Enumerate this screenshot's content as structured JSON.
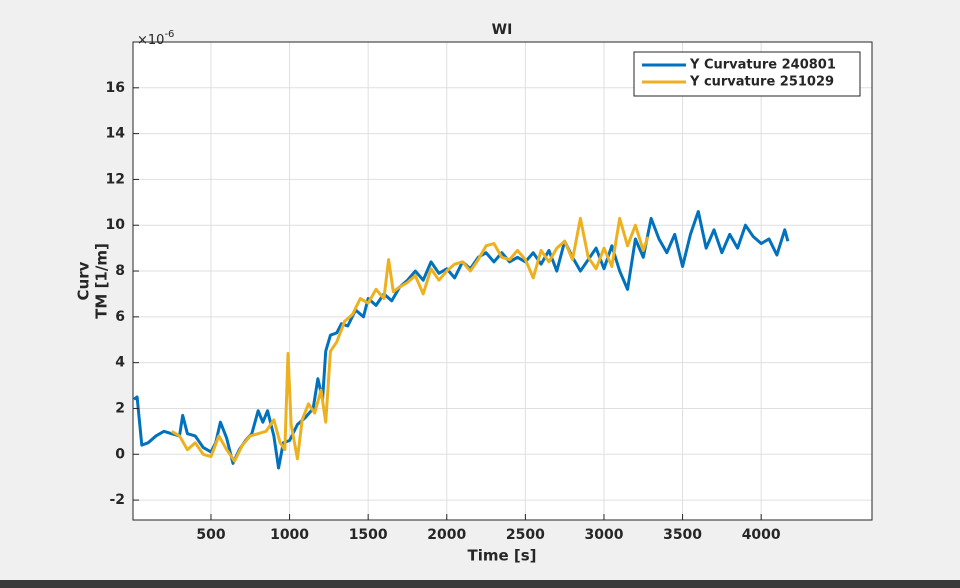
{
  "chart_data": {
    "type": "line",
    "title": "WI",
    "xlabel": "Time [s]",
    "ylabel": [
      "Curv",
      "TM [1/m]"
    ],
    "y_exponent": {
      "base": "×10",
      "power": "-6"
    },
    "xlim": [
      4,
      4705
    ],
    "ylim": [
      -2.87,
      18
    ],
    "xticks": [
      500,
      1000,
      1500,
      2000,
      2500,
      3000,
      3500,
      4000
    ],
    "yticks": [
      -2,
      0,
      2,
      4,
      6,
      8,
      10,
      12,
      14,
      16
    ],
    "grid": true,
    "legend": "northeast",
    "series": [
      {
        "name": "Y Curvature 240801",
        "color": "#0072bd",
        "x": [
          10,
          30,
          60,
          100,
          150,
          200,
          250,
          300,
          320,
          350,
          400,
          450,
          500,
          530,
          560,
          600,
          640,
          680,
          720,
          760,
          800,
          830,
          860,
          900,
          930,
          960,
          1000,
          1050,
          1100,
          1150,
          1180,
          1210,
          1230,
          1260,
          1300,
          1330,
          1370,
          1420,
          1470,
          1500,
          1550,
          1600,
          1650,
          1700,
          1750,
          1800,
          1850,
          1900,
          1950,
          2000,
          2050,
          2100,
          2150,
          2200,
          2250,
          2300,
          2350,
          2400,
          2450,
          2500,
          2550,
          2600,
          2650,
          2700,
          2750,
          2800,
          2850,
          2900,
          2950,
          3000,
          3050,
          3100,
          3150,
          3200,
          3250,
          3300,
          3350,
          3400,
          3450,
          3500,
          3550,
          3600,
          3650,
          3700,
          3750,
          3800,
          3850,
          3900,
          3950,
          4000,
          4050,
          4100,
          4150,
          4170
        ],
        "values": [
          2.4,
          2.5,
          0.4,
          0.5,
          0.8,
          1.0,
          0.9,
          0.8,
          1.7,
          0.9,
          0.8,
          0.3,
          0.1,
          0.5,
          1.4,
          0.7,
          -0.4,
          0.2,
          0.6,
          0.9,
          1.9,
          1.4,
          1.9,
          0.8,
          -0.6,
          0.5,
          0.6,
          1.3,
          1.6,
          2.0,
          3.3,
          2.4,
          4.5,
          5.2,
          5.3,
          5.7,
          5.6,
          6.3,
          6.0,
          6.8,
          6.5,
          7.0,
          6.7,
          7.3,
          7.6,
          8.0,
          7.6,
          8.4,
          7.9,
          8.1,
          7.7,
          8.4,
          8.1,
          8.6,
          8.8,
          8.4,
          8.8,
          8.4,
          8.6,
          8.4,
          8.8,
          8.3,
          8.9,
          8.0,
          9.3,
          8.6,
          8.0,
          8.5,
          9.0,
          8.1,
          9.1,
          8.0,
          7.2,
          9.4,
          8.6,
          10.3,
          9.4,
          8.8,
          9.6,
          8.2,
          9.6,
          10.6,
          9.0,
          9.8,
          8.8,
          9.6,
          9.0,
          10.0,
          9.5,
          9.2,
          9.4,
          8.7,
          9.8,
          9.3
        ]
      },
      {
        "name": "Y curvature 251029",
        "color": "#edb120",
        "x": [
          250,
          300,
          350,
          400,
          450,
          500,
          550,
          600,
          650,
          700,
          750,
          800,
          850,
          900,
          940,
          970,
          990,
          1010,
          1050,
          1080,
          1120,
          1160,
          1200,
          1230,
          1260,
          1300,
          1350,
          1400,
          1450,
          1500,
          1550,
          1600,
          1630,
          1660,
          1700,
          1750,
          1800,
          1850,
          1900,
          1950,
          2000,
          2050,
          2100,
          2150,
          2200,
          2250,
          2300,
          2350,
          2400,
          2450,
          2500,
          2550,
          2600,
          2650,
          2700,
          2750,
          2800,
          2850,
          2900,
          2950,
          3000,
          3050,
          3100,
          3150,
          3200,
          3250,
          3280
        ],
        "values": [
          1.0,
          0.8,
          0.2,
          0.5,
          0.0,
          -0.1,
          0.8,
          0.2,
          -0.3,
          0.4,
          0.8,
          0.9,
          1.0,
          1.5,
          0.5,
          0.2,
          4.4,
          1.3,
          -0.2,
          1.5,
          2.2,
          1.8,
          2.8,
          1.4,
          4.5,
          4.9,
          5.8,
          6.1,
          6.8,
          6.6,
          7.2,
          6.8,
          8.5,
          7.1,
          7.3,
          7.5,
          7.8,
          7.0,
          8.1,
          7.6,
          8.0,
          8.3,
          8.4,
          8.0,
          8.5,
          9.1,
          9.2,
          8.6,
          8.5,
          8.9,
          8.5,
          7.7,
          8.9,
          8.4,
          9.0,
          9.3,
          8.5,
          10.3,
          8.6,
          8.1,
          9.0,
          8.2,
          10.3,
          9.1,
          10.0,
          8.9,
          9.5
        ]
      }
    ]
  }
}
